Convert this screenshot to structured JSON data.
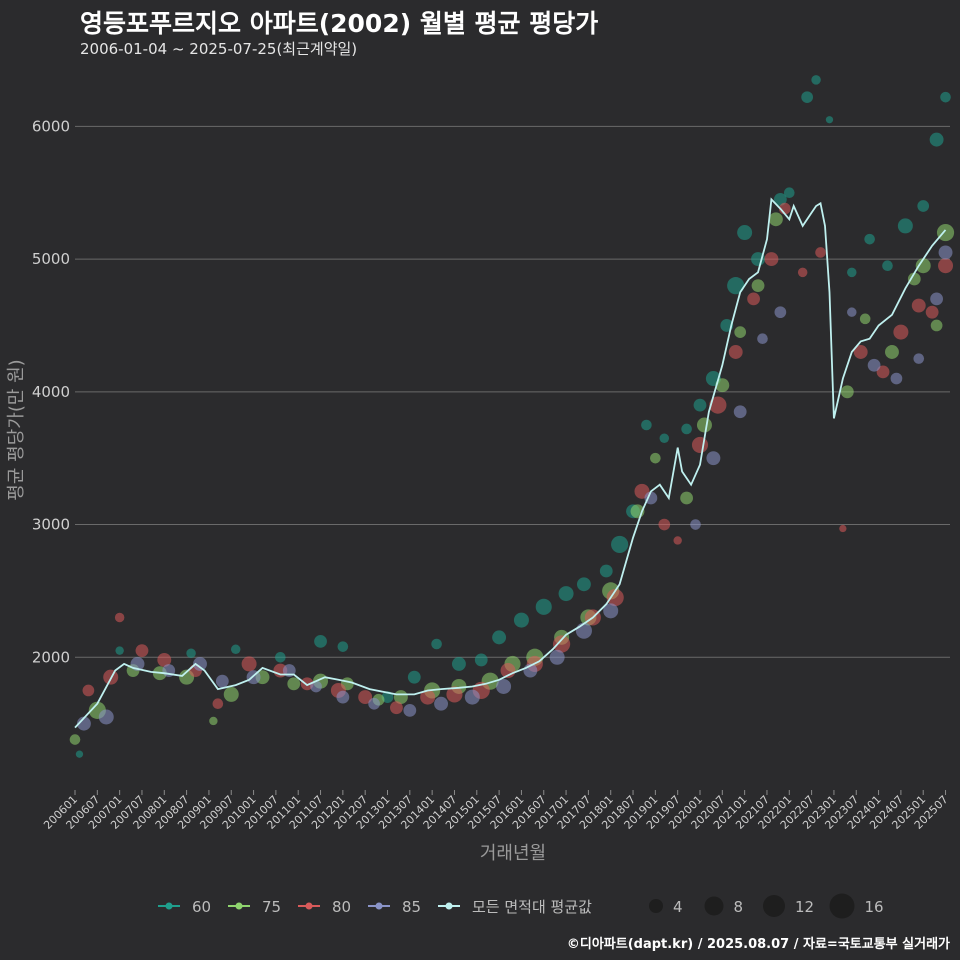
{
  "title": "영등포푸르지오 아파트(2002) 월별 평균 평당가",
  "subtitle": "2006-01-04 ~ 2025-07-25(최근계약일)",
  "footer": "©디아파트(dapt.kr) / 2025.08.07 / 자료=국토교통부 실거래가",
  "colors": {
    "background": "#2b2b2d",
    "grid": "#6a6a6a",
    "size_60": "#1f9e8c",
    "size_75": "#8fd46e",
    "size_80": "#d85a5a",
    "size_85": "#8a94c8",
    "average_line": "#bff0ef"
  },
  "chart_data": {
    "type": "scatter",
    "title": "영등포푸르지오 아파트(2002) 월별 평균 평당가",
    "xlabel": "거래년월",
    "ylabel": "평균 평당가(만 원)",
    "ylim": [
      1000,
      6500
    ],
    "yticks": [
      2000,
      3000,
      4000,
      5000,
      6000
    ],
    "xlim": [
      2006.0,
      2025.6
    ],
    "xticks": [
      "200601",
      "200607",
      "200701",
      "200707",
      "200801",
      "200807",
      "200901",
      "200907",
      "201001",
      "201007",
      "201101",
      "201107",
      "201201",
      "201207",
      "201301",
      "201307",
      "201401",
      "201407",
      "201501",
      "201507",
      "201601",
      "201607",
      "201701",
      "201707",
      "201801",
      "201807",
      "201901",
      "201907",
      "202001",
      "202007",
      "202101",
      "202107",
      "202201",
      "202207",
      "202301",
      "202307",
      "202401",
      "202407",
      "202501",
      "202507"
    ],
    "grid": "horizontal",
    "legend_position": "bottom",
    "legend_series": [
      "60",
      "75",
      "80",
      "85",
      "모든 면적대 평균값"
    ],
    "legend_sizes": [
      4,
      8,
      12,
      16
    ],
    "average_line": {
      "name": "모든 면적대 평균값",
      "x": [
        2006.0,
        2006.5,
        2006.9,
        2007.1,
        2007.3,
        2007.7,
        2008.0,
        2008.4,
        2008.7,
        2008.9,
        2009.2,
        2009.6,
        2009.9,
        2010.2,
        2010.6,
        2010.9,
        2011.2,
        2011.6,
        2011.9,
        2012.2,
        2012.6,
        2012.9,
        2013.2,
        2013.6,
        2013.9,
        2014.2,
        2014.6,
        2014.9,
        2015.2,
        2015.5,
        2015.8,
        2016.1,
        2016.4,
        2016.7,
        2017.0,
        2017.3,
        2017.6,
        2017.9,
        2018.2,
        2018.5,
        2018.7,
        2018.9,
        2019.1,
        2019.3,
        2019.5,
        2019.6,
        2019.8,
        2020.0,
        2020.2,
        2020.5,
        2020.7,
        2020.9,
        2021.1,
        2021.3,
        2021.5,
        2021.6,
        2021.8,
        2022.0,
        2022.1,
        2022.3,
        2022.5,
        2022.6,
        2022.7,
        2022.8,
        2022.9,
        2023.0,
        2023.1,
        2023.2,
        2023.4,
        2023.6,
        2023.8,
        2024.0,
        2024.3,
        2024.6,
        2024.9,
        2025.2,
        2025.5
      ],
      "y": [
        1470,
        1650,
        1900,
        1950,
        1920,
        1890,
        1880,
        1860,
        1950,
        1900,
        1760,
        1790,
        1830,
        1920,
        1870,
        1870,
        1790,
        1850,
        1830,
        1810,
        1760,
        1740,
        1720,
        1720,
        1750,
        1760,
        1770,
        1780,
        1800,
        1830,
        1880,
        1920,
        1970,
        2060,
        2170,
        2230,
        2300,
        2400,
        2550,
        2900,
        3100,
        3250,
        3300,
        3200,
        3580,
        3400,
        3300,
        3450,
        3850,
        4200,
        4500,
        4750,
        4850,
        4900,
        5150,
        5450,
        5380,
        5300,
        5400,
        5250,
        5350,
        5400,
        5420,
        5250,
        4750,
        3800,
        3950,
        4100,
        4300,
        4380,
        4400,
        4500,
        4580,
        4780,
        4950,
        5100,
        5220
      ]
    },
    "series": [
      {
        "name": "60",
        "points": [
          [
            2006.1,
            1270,
            3
          ],
          [
            2007.0,
            2050,
            4
          ],
          [
            2008.6,
            2030,
            5
          ],
          [
            2009.6,
            2060,
            5
          ],
          [
            2010.6,
            2000,
            6
          ],
          [
            2011.5,
            2120,
            8
          ],
          [
            2012.0,
            2080,
            6
          ],
          [
            2013.0,
            1700,
            7
          ],
          [
            2013.6,
            1850,
            8
          ],
          [
            2014.1,
            2100,
            6
          ],
          [
            2014.6,
            1950,
            9
          ],
          [
            2015.1,
            1980,
            8
          ],
          [
            2015.5,
            2150,
            9
          ],
          [
            2016.0,
            2280,
            10
          ],
          [
            2016.5,
            2380,
            11
          ],
          [
            2017.0,
            2480,
            10
          ],
          [
            2017.4,
            2550,
            9
          ],
          [
            2017.9,
            2650,
            8
          ],
          [
            2018.2,
            2850,
            12
          ],
          [
            2018.5,
            3100,
            9
          ],
          [
            2018.8,
            3750,
            6
          ],
          [
            2019.2,
            3650,
            5
          ],
          [
            2019.7,
            3720,
            6
          ],
          [
            2020.0,
            3900,
            8
          ],
          [
            2020.3,
            4100,
            10
          ],
          [
            2020.6,
            4500,
            8
          ],
          [
            2020.8,
            4800,
            12
          ],
          [
            2021.0,
            5200,
            10
          ],
          [
            2021.3,
            5000,
            9
          ],
          [
            2021.8,
            5450,
            8
          ],
          [
            2022.0,
            5500,
            6
          ],
          [
            2022.6,
            6350,
            5
          ],
          [
            2022.4,
            6220,
            7
          ],
          [
            2022.9,
            6050,
            3
          ],
          [
            2023.4,
            4900,
            5
          ],
          [
            2023.8,
            5150,
            6
          ],
          [
            2024.2,
            4950,
            6
          ],
          [
            2024.6,
            5250,
            10
          ],
          [
            2025.0,
            5400,
            7
          ],
          [
            2025.3,
            5900,
            9
          ],
          [
            2025.5,
            6220,
            6
          ]
        ]
      },
      {
        "name": "75",
        "points": [
          [
            2006.0,
            1380,
            6
          ],
          [
            2006.5,
            1600,
            12
          ],
          [
            2007.3,
            1900,
            8
          ],
          [
            2007.9,
            1880,
            9
          ],
          [
            2008.5,
            1850,
            10
          ],
          [
            2009.1,
            1520,
            4
          ],
          [
            2009.5,
            1720,
            10
          ],
          [
            2010.2,
            1850,
            9
          ],
          [
            2010.9,
            1800,
            8
          ],
          [
            2011.5,
            1820,
            10
          ],
          [
            2012.1,
            1800,
            8
          ],
          [
            2012.8,
            1680,
            7
          ],
          [
            2013.3,
            1700,
            9
          ],
          [
            2014.0,
            1750,
            11
          ],
          [
            2014.6,
            1780,
            10
          ],
          [
            2015.3,
            1820,
            12
          ],
          [
            2015.8,
            1950,
            11
          ],
          [
            2016.3,
            2000,
            12
          ],
          [
            2016.9,
            2150,
            10
          ],
          [
            2017.5,
            2300,
            11
          ],
          [
            2018.0,
            2500,
            12
          ],
          [
            2018.6,
            3100,
            9
          ],
          [
            2019.0,
            3500,
            6
          ],
          [
            2019.7,
            3200,
            8
          ],
          [
            2020.1,
            3750,
            10
          ],
          [
            2020.5,
            4050,
            9
          ],
          [
            2020.9,
            4450,
            7
          ],
          [
            2021.3,
            4800,
            8
          ],
          [
            2021.7,
            5300,
            9
          ],
          [
            2023.3,
            4000,
            8
          ],
          [
            2023.7,
            4550,
            6
          ],
          [
            2024.3,
            4300,
            9
          ],
          [
            2024.8,
            4850,
            8
          ],
          [
            2025.0,
            4950,
            10
          ],
          [
            2025.3,
            4500,
            7
          ],
          [
            2025.5,
            5200,
            12
          ]
        ]
      },
      {
        "name": "80",
        "points": [
          [
            2006.3,
            1750,
            7
          ],
          [
            2006.8,
            1850,
            10
          ],
          [
            2007.0,
            2300,
            5
          ],
          [
            2007.5,
            2050,
            8
          ],
          [
            2008.0,
            1980,
            9
          ],
          [
            2008.7,
            1900,
            8
          ],
          [
            2009.2,
            1650,
            6
          ],
          [
            2009.9,
            1950,
            10
          ],
          [
            2010.6,
            1900,
            9
          ],
          [
            2011.2,
            1800,
            8
          ],
          [
            2011.9,
            1750,
            10
          ],
          [
            2012.5,
            1700,
            9
          ],
          [
            2013.2,
            1620,
            8
          ],
          [
            2013.9,
            1700,
            10
          ],
          [
            2014.5,
            1720,
            11
          ],
          [
            2015.1,
            1750,
            12
          ],
          [
            2015.7,
            1900,
            10
          ],
          [
            2016.3,
            1950,
            11
          ],
          [
            2016.9,
            2100,
            12
          ],
          [
            2017.6,
            2300,
            11
          ],
          [
            2018.1,
            2450,
            12
          ],
          [
            2018.7,
            3250,
            10
          ],
          [
            2019.2,
            3000,
            7
          ],
          [
            2019.5,
            2880,
            4
          ],
          [
            2020.0,
            3600,
            11
          ],
          [
            2020.4,
            3900,
            12
          ],
          [
            2020.8,
            4300,
            9
          ],
          [
            2021.2,
            4700,
            8
          ],
          [
            2021.6,
            5000,
            9
          ],
          [
            2021.9,
            5380,
            7
          ],
          [
            2022.3,
            4900,
            5
          ],
          [
            2022.7,
            5050,
            6
          ],
          [
            2023.2,
            2970,
            3
          ],
          [
            2023.6,
            4300,
            9
          ],
          [
            2024.1,
            4150,
            8
          ],
          [
            2024.5,
            4450,
            10
          ],
          [
            2024.9,
            4650,
            9
          ],
          [
            2025.2,
            4600,
            8
          ],
          [
            2025.5,
            4950,
            10
          ]
        ]
      },
      {
        "name": "85",
        "points": [
          [
            2006.2,
            1500,
            9
          ],
          [
            2006.7,
            1550,
            10
          ],
          [
            2007.4,
            1950,
            9
          ],
          [
            2008.1,
            1900,
            8
          ],
          [
            2008.8,
            1950,
            9
          ],
          [
            2009.3,
            1820,
            8
          ],
          [
            2010.0,
            1850,
            9
          ],
          [
            2010.8,
            1900,
            8
          ],
          [
            2011.4,
            1780,
            7
          ],
          [
            2012.0,
            1700,
            8
          ],
          [
            2012.7,
            1650,
            7
          ],
          [
            2013.5,
            1600,
            8
          ],
          [
            2014.2,
            1650,
            9
          ],
          [
            2014.9,
            1700,
            10
          ],
          [
            2015.6,
            1780,
            10
          ],
          [
            2016.2,
            1900,
            9
          ],
          [
            2016.8,
            2000,
            10
          ],
          [
            2017.4,
            2200,
            11
          ],
          [
            2018.0,
            2350,
            10
          ],
          [
            2018.9,
            3200,
            8
          ],
          [
            2019.9,
            3000,
            6
          ],
          [
            2020.3,
            3500,
            9
          ],
          [
            2020.9,
            3850,
            8
          ],
          [
            2021.4,
            4400,
            6
          ],
          [
            2021.8,
            4600,
            7
          ],
          [
            2023.4,
            4600,
            5
          ],
          [
            2023.9,
            4200,
            8
          ],
          [
            2024.4,
            4100,
            7
          ],
          [
            2024.9,
            4250,
            6
          ],
          [
            2025.3,
            4700,
            8
          ],
          [
            2025.5,
            5050,
            9
          ]
        ]
      }
    ]
  },
  "legend": {
    "items": [
      {
        "label": "60"
      },
      {
        "label": "75"
      },
      {
        "label": "80"
      },
      {
        "label": "85"
      },
      {
        "label": "모든 면적대 평균값"
      }
    ],
    "sizes": [
      {
        "label": "4"
      },
      {
        "label": "8"
      },
      {
        "label": "12"
      },
      {
        "label": "16"
      }
    ]
  }
}
